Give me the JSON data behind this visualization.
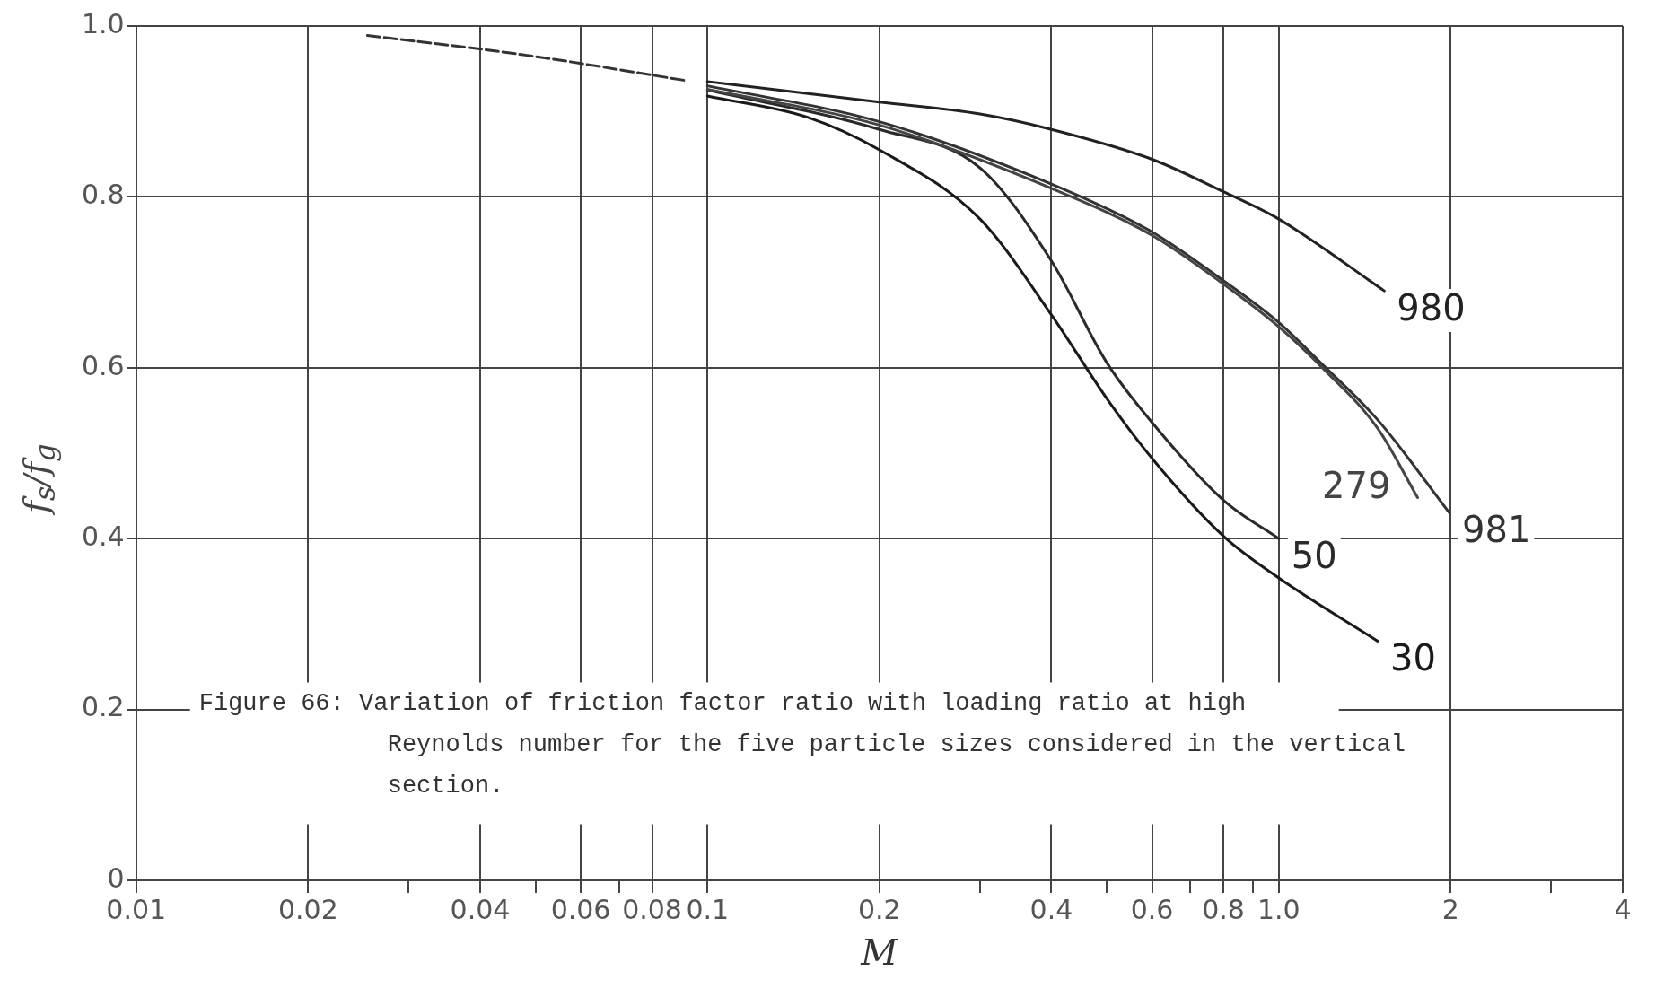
{
  "chart_data": {
    "type": "line",
    "xlabel": "M",
    "ylabel": "f$_{s}$/f$_{g}$",
    "log": "x",
    "grid": true,
    "legend": false,
    "marker": "none",
    "xlim": [
      0.01,
      4
    ],
    "ylim": [
      0,
      1
    ],
    "xticks": [
      {
        "value": 0.01,
        "label": "0.01"
      },
      {
        "value": 0.02,
        "label": "0.02"
      },
      {
        "value": 0.03,
        "label": null
      },
      {
        "value": 0.04,
        "label": "0.04"
      },
      {
        "value": 0.05,
        "label": null
      },
      {
        "value": 0.06,
        "label": "0.06"
      },
      {
        "value": 0.07,
        "label": null
      },
      {
        "value": 0.08,
        "label": "0.08"
      },
      {
        "value": 0.1,
        "label": "0.1"
      },
      {
        "value": 0.2,
        "label": "0.2"
      },
      {
        "value": 0.3,
        "label": null
      },
      {
        "value": 0.4,
        "label": "0.4"
      },
      {
        "value": 0.5,
        "label": null
      },
      {
        "value": 0.6,
        "label": "0.6"
      },
      {
        "value": 0.7,
        "label": null
      },
      {
        "value": 0.8,
        "label": "0.8"
      },
      {
        "value": 0.9,
        "label": null
      },
      {
        "value": 1,
        "label": "1.0"
      },
      {
        "value": 2,
        "label": "2"
      },
      {
        "value": 3,
        "label": null
      },
      {
        "value": 4,
        "label": "4"
      }
    ],
    "yticks": [
      0,
      0.2,
      0.4,
      0.6,
      0.8,
      {
        "value": 1,
        "label": "1.0"
      }
    ],
    "series": [
      {
        "color": "#333333",
        "line_style": "dashed",
        "x": [
          0.0254,
          0.048,
          0.092
        ],
        "values": [
          0.989,
          0.966,
          0.936
        ]
      },
      {
        "name": "980",
        "color": "#222222",
        "line_style": "solid",
        "x": [
          0.1,
          0.2,
          0.3,
          0.4,
          0.6,
          0.8,
          1.0,
          1.53
        ],
        "values": [
          0.935,
          0.911,
          0.897,
          0.879,
          0.844,
          0.806,
          0.774,
          0.69
        ]
      },
      {
        "name": "279",
        "color": "#444444",
        "line_style": "solid",
        "x": [
          0.1,
          0.2,
          0.4,
          0.6,
          0.8,
          1.0,
          1.2,
          1.49,
          1.75
        ],
        "values": [
          0.926,
          0.884,
          0.81,
          0.755,
          0.698,
          0.648,
          0.598,
          0.529,
          0.448
        ]
      },
      {
        "name": "981",
        "color": "#333333",
        "line_style": "solid",
        "x": [
          0.1,
          0.2,
          0.4,
          0.6,
          0.8,
          1.0,
          1.2,
          1.49,
          1.99
        ],
        "values": [
          0.93,
          0.888,
          0.815,
          0.759,
          0.702,
          0.653,
          0.602,
          0.539,
          0.43
        ]
      },
      {
        "name": "50",
        "color": "#2a2a2a",
        "line_style": "solid",
        "x": [
          0.1,
          0.2,
          0.3,
          0.4,
          0.5,
          0.6,
          0.8,
          1.0
        ],
        "values": [
          0.925,
          0.879,
          0.834,
          0.725,
          0.606,
          0.536,
          0.445,
          0.4
        ]
      },
      {
        "name": "30",
        "color": "#1a1a1a",
        "line_style": "solid",
        "x": [
          0.1,
          0.15,
          0.2,
          0.3,
          0.4,
          0.5,
          0.6,
          0.8,
          1.0,
          1.49
        ],
        "values": [
          0.918,
          0.893,
          0.855,
          0.774,
          0.662,
          0.564,
          0.494,
          0.403,
          0.354,
          0.28
        ]
      }
    ],
    "annotations": [
      "Figure 66: Variation of friction factor ratio with loading ratio at high Reynolds number for the five particle sizes considered in the vertical section."
    ]
  }
}
